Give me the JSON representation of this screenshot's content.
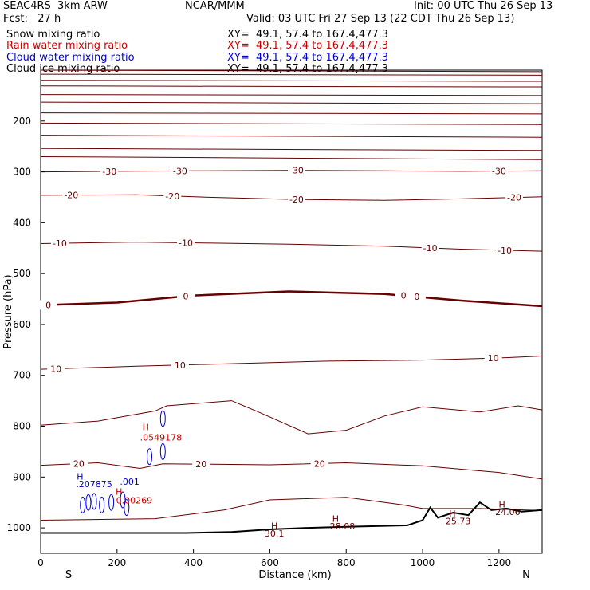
{
  "header": {
    "experiment": "SEAC4RS  3km ARW",
    "org": "NCAR/MMM",
    "init": "Init: 00 UTC Thu 26 Sep 13",
    "fcst": "Fcst:   27 h",
    "valid": "Valid: 03 UTC Fri 27 Sep 13 (22 CDT Thu 26 Sep 13)"
  },
  "fields": [
    {
      "name": "Snow mixing ratio",
      "xy": "XY=  49.1, 57.4 to 167.4,477.3",
      "color": "#000000"
    },
    {
      "name": "Rain water mixing ratio",
      "xy": "XY=  49.1, 57.4 to 167.4,477.3",
      "color": "#cc0000"
    },
    {
      "name": "Cloud water mixing ratio",
      "xy": "XY=  49.1, 57.4 to 167.4,477.3",
      "color": "#0000cc"
    },
    {
      "name": "Cloud ice mixing ratio",
      "xy": "XY=  49.1, 57.4 to 167.4,477.3",
      "color": "#000000"
    }
  ],
  "colors": {
    "temperature": "#660000",
    "terrain": "#000000",
    "rain": "#cc0000",
    "cloud": "#0000cc"
  },
  "chart_data": {
    "type": "line",
    "xlabel": "Distance (km)",
    "ylabel": "Pressure (hPa)",
    "xlim": [
      0,
      1313
    ],
    "ylim": [
      1050,
      100
    ],
    "x_ticks": [
      0,
      200,
      400,
      600,
      800,
      1000,
      1200
    ],
    "y_ticks": [
      200,
      300,
      400,
      500,
      600,
      700,
      800,
      900,
      1000
    ],
    "x_end_labels": {
      "left": "S",
      "right": "N"
    },
    "isotherms": [
      {
        "label": "-30",
        "points": [
          [
            0,
            300
          ],
          [
            200,
            299
          ],
          [
            400,
            298
          ],
          [
            650,
            297
          ],
          [
            900,
            298
          ],
          [
            1100,
            299
          ],
          [
            1313,
            298
          ]
        ],
        "labels_at": [
          180,
          365,
          670,
          1200
        ]
      },
      {
        "label": "-20",
        "points": [
          [
            0,
            346
          ],
          [
            250,
            345
          ],
          [
            450,
            350
          ],
          [
            650,
            354
          ],
          [
            900,
            356
          ],
          [
            1100,
            353
          ],
          [
            1313,
            349
          ]
        ],
        "labels_at": [
          80,
          345,
          670,
          1240
        ]
      },
      {
        "label": "-10",
        "points": [
          [
            0,
            441
          ],
          [
            250,
            438
          ],
          [
            450,
            440
          ],
          [
            650,
            442
          ],
          [
            900,
            446
          ],
          [
            1100,
            452
          ],
          [
            1313,
            456
          ]
        ],
        "labels_at": [
          50,
          380,
          1020,
          1215
        ]
      },
      {
        "label": "0",
        "points": [
          [
            0,
            562
          ],
          [
            200,
            557
          ],
          [
            400,
            543
          ],
          [
            650,
            535
          ],
          [
            900,
            540
          ],
          [
            1100,
            553
          ],
          [
            1313,
            564
          ]
        ],
        "labels_at": [
          20,
          380,
          950,
          985
        ]
      },
      {
        "label": "10",
        "points": [
          [
            0,
            688
          ],
          [
            250,
            682
          ],
          [
            500,
            677
          ],
          [
            750,
            672
          ],
          [
            1000,
            670
          ],
          [
            1200,
            666
          ],
          [
            1313,
            662
          ]
        ],
        "labels_at": [
          40,
          365,
          1185
        ]
      },
      {
        "label": "20",
        "points": [
          [
            0,
            877
          ],
          [
            150,
            872
          ],
          [
            260,
            883
          ],
          [
            320,
            874
          ],
          [
            600,
            876
          ],
          [
            800,
            872
          ],
          [
            1000,
            878
          ],
          [
            1200,
            891
          ],
          [
            1313,
            904
          ]
        ],
        "labels_at": [
          100,
          420,
          730
        ]
      }
    ],
    "data_labels": [
      {
        "text": "H",
        "x": 103,
        "p": 905,
        "color": "#0000cc"
      },
      {
        "text": ".207875",
        "x": 140,
        "p": 920,
        "color": "#0000cc"
      },
      {
        "text": ".001",
        "x": 233,
        "p": 915,
        "color": "#0000cc"
      },
      {
        "text": "H",
        "x": 275,
        "p": 808,
        "color": "#cc0000"
      },
      {
        "text": ".0549178",
        "x": 315,
        "p": 828,
        "color": "#cc0000"
      },
      {
        "text": "H",
        "x": 205,
        "p": 935,
        "color": "#cc0000"
      },
      {
        "text": "0.00269",
        "x": 245,
        "p": 952,
        "color": "#cc0000"
      },
      {
        "text": "H",
        "x": 612,
        "p": 1002,
        "color": "#660000"
      },
      {
        "text": "30.1",
        "x": 612,
        "p": 1017,
        "color": "#660000"
      },
      {
        "text": "H",
        "x": 772,
        "p": 988,
        "color": "#660000"
      },
      {
        "text": "28.08",
        "x": 790,
        "p": 1003,
        "color": "#660000"
      },
      {
        "text": "H",
        "x": 1078,
        "p": 978,
        "color": "#660000"
      },
      {
        "text": "25.73",
        "x": 1093,
        "p": 993,
        "color": "#660000"
      },
      {
        "text": "H",
        "x": 1208,
        "p": 960,
        "color": "#660000"
      },
      {
        "text": "24.06",
        "x": 1223,
        "p": 975,
        "color": "#660000"
      }
    ]
  }
}
